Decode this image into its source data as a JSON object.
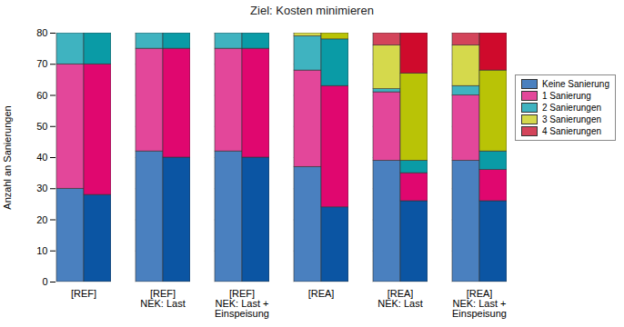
{
  "chart_data": {
    "type": "bar",
    "title": "Ziel: Kosten minimieren",
    "y_label": "Anzahl an Sanierungen",
    "categories": [
      "[REF]",
      "[REF]\nNEK: Last",
      "[REF]\nNEK: Last +\nEinspeisung",
      "[REA]",
      "[REA]\nNEK: Last",
      "[REA]\nNEK: Last +\nEinspeisung"
    ],
    "series": [
      {
        "name": "Keine Sanierung",
        "colors": [
          "#4a80bf",
          "#0b55a3"
        ],
        "values": [
          [
            30,
            28
          ],
          [
            42,
            40
          ],
          [
            42,
            40
          ],
          [
            37,
            24
          ],
          [
            39,
            26
          ],
          [
            39,
            26
          ]
        ]
      },
      {
        "name": "1 Sanierung",
        "colors": [
          "#e3479a",
          "#e0076f"
        ],
        "values": [
          [
            40,
            42
          ],
          [
            33,
            35
          ],
          [
            33,
            35
          ],
          [
            31,
            39
          ],
          [
            22,
            9
          ],
          [
            21,
            10
          ]
        ]
      },
      {
        "name": "2 Sanierungen",
        "colors": [
          "#3fb3c0",
          "#0a9ba6"
        ],
        "values": [
          [
            10,
            10
          ],
          [
            5,
            5
          ],
          [
            5,
            5
          ],
          [
            11,
            15
          ],
          [
            1,
            4
          ],
          [
            3,
            6
          ]
        ]
      },
      {
        "name": "3 Sanierungen",
        "colors": [
          "#d5d94c",
          "#b9c306"
        ],
        "values": [
          [
            0,
            0
          ],
          [
            0,
            0
          ],
          [
            0,
            0
          ],
          [
            1,
            2
          ],
          [
            14,
            28
          ],
          [
            13,
            26
          ]
        ]
      },
      {
        "name": "4 Sanierungen",
        "colors": [
          "#d3445a",
          "#cf0a2c"
        ],
        "values": [
          [
            0,
            0
          ],
          [
            0,
            0
          ],
          [
            0,
            0
          ],
          [
            0,
            0
          ],
          [
            4,
            13
          ],
          [
            4,
            12
          ]
        ]
      }
    ],
    "ylim": [
      0,
      80
    ],
    "yticks": [
      0,
      10,
      20,
      30,
      40,
      50,
      60,
      70,
      80
    ],
    "grid": true,
    "stacked": true,
    "legend": "right"
  }
}
